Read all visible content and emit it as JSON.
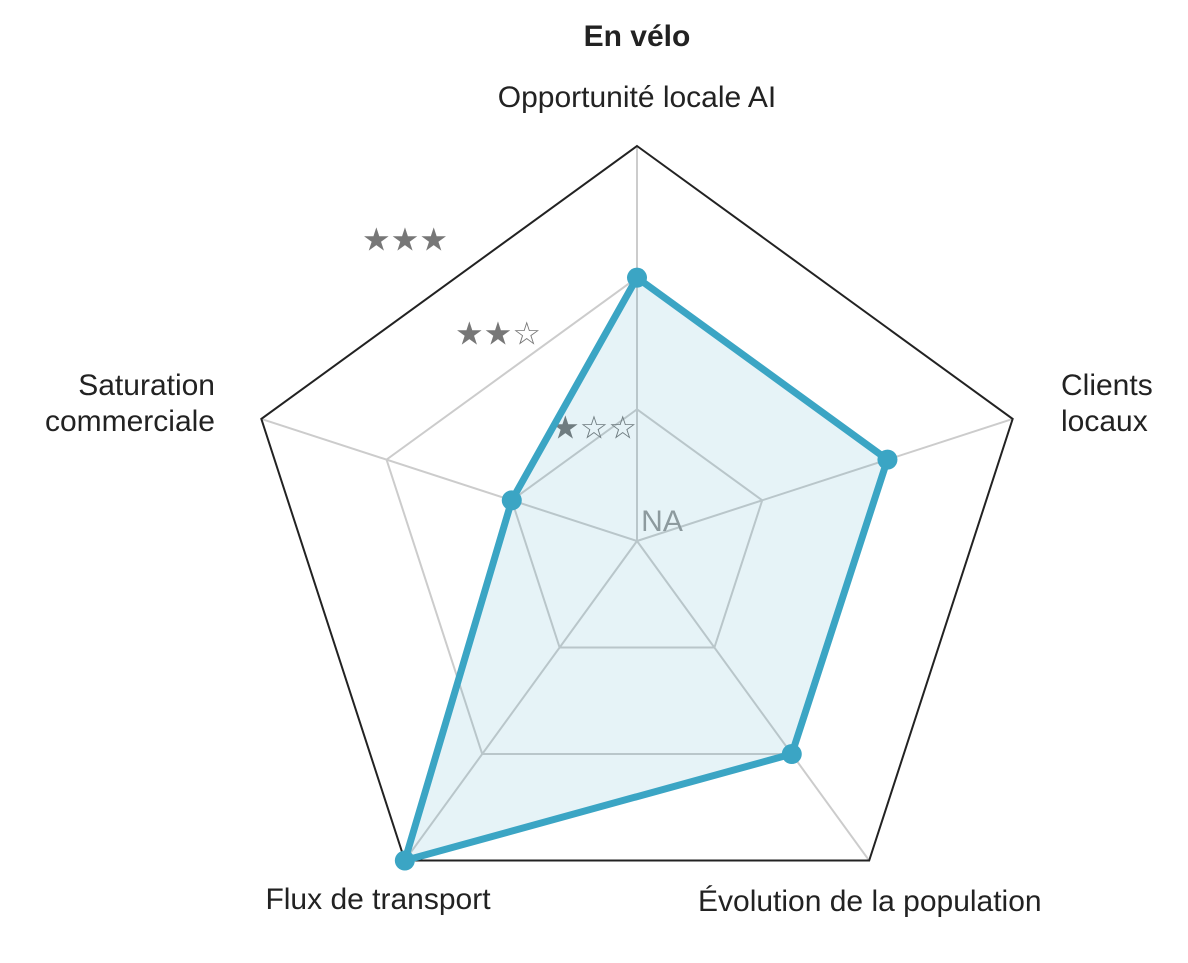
{
  "chart_data": {
    "type": "radar",
    "title": "En vélo",
    "categories": [
      "Opportunité locale AI",
      "Clients locaux",
      "Évolution de la population",
      "Flux de transport",
      "Saturation commerciale"
    ],
    "values": [
      2,
      2,
      2,
      3,
      1
    ],
    "color": "#3ba5c4",
    "ylim": [
      0,
      3
    ],
    "yticks": [
      {
        "value": 0,
        "label": "NA"
      },
      {
        "value": 1,
        "label": "★☆☆"
      },
      {
        "value": 2,
        "label": "★★☆"
      },
      {
        "value": 3,
        "label": "★★★"
      }
    ],
    "grid": true
  }
}
